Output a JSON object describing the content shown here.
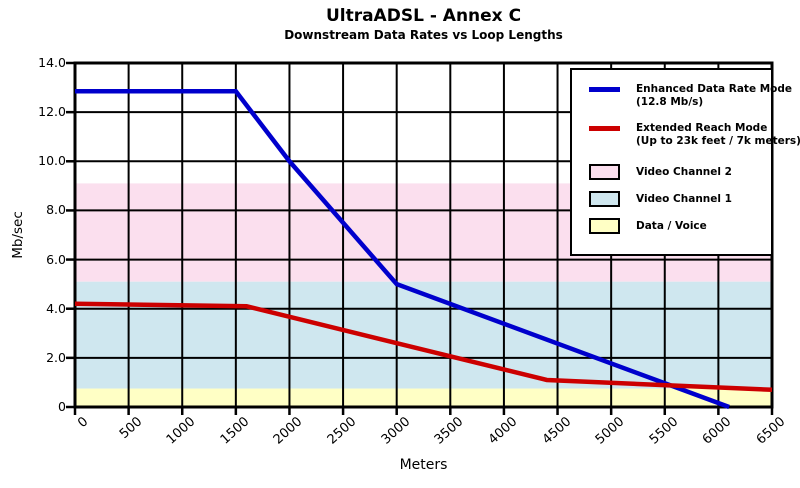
{
  "chart_data": {
    "type": "line",
    "title": "UltraADSL - Annex C",
    "subtitle": "Downstream Data Rates vs Loop Lengths",
    "xlabel": "Meters",
    "ylabel": "Mb/sec",
    "xlim": [
      0,
      6500
    ],
    "ylim": [
      0,
      14
    ],
    "xticks": [
      0,
      500,
      1000,
      1500,
      2000,
      2500,
      3000,
      3500,
      4000,
      4500,
      5000,
      5500,
      6000,
      6500
    ],
    "yticks": [
      {
        "v": 14,
        "label": "14.0"
      },
      {
        "v": 12,
        "label": "12.0"
      },
      {
        "v": 10,
        "label": "10.0"
      },
      {
        "v": 8,
        "label": "8.0"
      },
      {
        "v": 6,
        "label": "6.0"
      },
      {
        "v": 4,
        "label": "4.0"
      },
      {
        "v": 2,
        "label": "2.0"
      },
      {
        "v": 0,
        "label": "0"
      }
    ],
    "grid": true,
    "grid_color": "#000000",
    "axis_color": "#000000",
    "background_color": "#ffffff",
    "legend_position": "top-right",
    "bands": [
      {
        "name": "Video Channel 2",
        "ymin": 5.1,
        "ymax": 9.1,
        "color": "#fbdfee"
      },
      {
        "name": "Video Channel 1",
        "ymin": 0.75,
        "ymax": 5.1,
        "color": "#cfe7ef"
      },
      {
        "name": "Data / Voice",
        "ymin": 0,
        "ymax": 0.75,
        "color": "#ffffc5"
      }
    ],
    "series": [
      {
        "name": "Enhanced Data Rate Mode",
        "legend_line1": "Enhanced Data Rate Mode",
        "legend_line2": "(12.8 Mb/s)",
        "color": "#0000cc",
        "points": [
          [
            0,
            12.85
          ],
          [
            1500,
            12.85
          ],
          [
            2000,
            10.0
          ],
          [
            3000,
            5.0
          ],
          [
            6100,
            0
          ]
        ]
      },
      {
        "name": "Extended Reach Mode",
        "legend_line1": "Extended Reach Mode",
        "legend_line2": "(Up to 23k feet / 7k meters)",
        "color": "#cc0000",
        "points": [
          [
            0,
            4.2
          ],
          [
            1600,
            4.1
          ],
          [
            4400,
            1.1
          ],
          [
            6500,
            0.7
          ]
        ]
      }
    ]
  }
}
